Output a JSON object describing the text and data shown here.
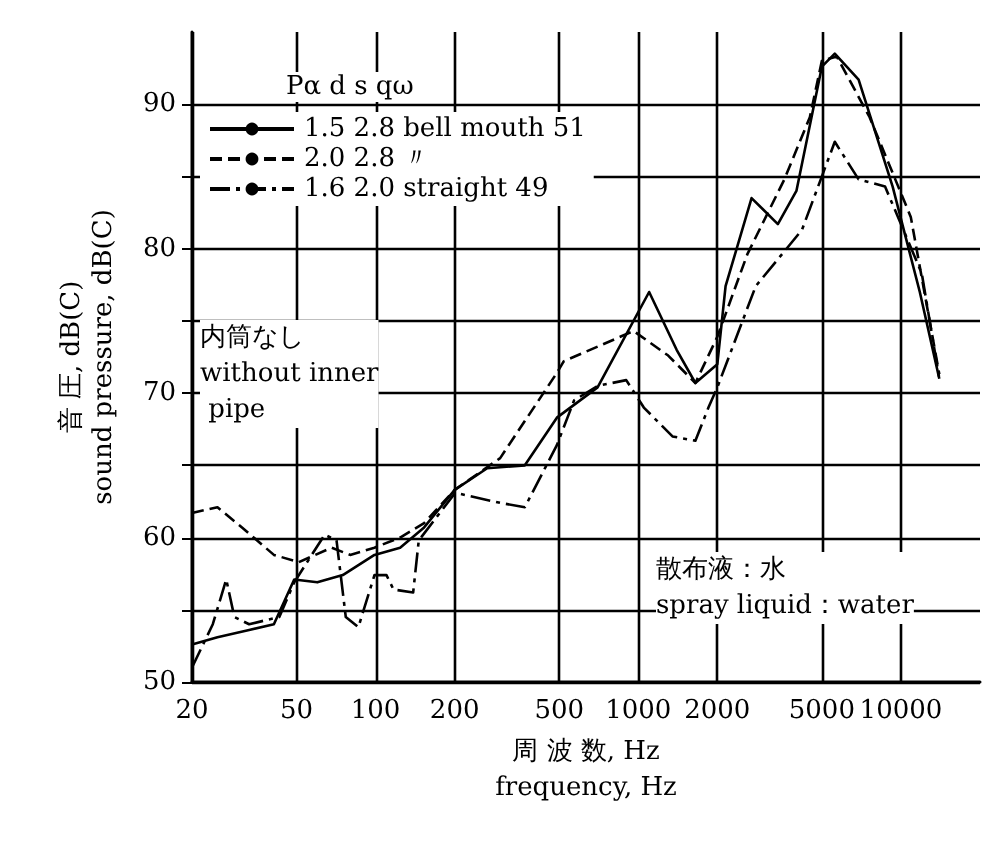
{
  "chart_data": {
    "type": "line",
    "xlabel": "周 波 数, Hz\nfrequency, Hz",
    "ylabel": "音 圧, dB(C)\nsound pressure, dB(C)",
    "legend_title": "Pα d s qω",
    "log": "x",
    "grid": true,
    "legend": "top left",
    "marker": "none",
    "xlim": [
      20,
      20000
    ],
    "xticks": [
      20,
      50,
      100,
      200,
      500,
      1000,
      2000,
      5000,
      10000
    ],
    "ylim": [
      50,
      95
    ],
    "yticks": [
      50,
      {
        "value": 55,
        "label": null
      },
      60,
      {
        "value": 65,
        "label": null
      },
      70,
      {
        "value": 75,
        "label": null
      },
      80,
      {
        "value": 85,
        "label": null
      },
      90
    ],
    "annotations": [
      "内筒なし\nwithout inner\n pipe",
      "散布液：水\nspray liquid：water"
    ],
    "series": [
      {
        "name": "1.5 2.8 bell mouth 51",
        "color": "#000000",
        "line_style": "solid",
        "x": [
          20,
          25,
          33,
          41,
          49,
          60,
          75,
          99,
          124,
          153,
          200,
          266,
          370,
          490,
          700,
          1100,
          1400,
          1650,
          2000,
          2150,
          2700,
          3400,
          4000,
          5000,
          5600,
          6900,
          9300,
          11800,
          14000
        ],
        "values": [
          52.6,
          53.1,
          53.6,
          54,
          57.1,
          56.9,
          57.4,
          58.8,
          59.3,
          60.7,
          63.3,
          64.8,
          65,
          68.3,
          70.4,
          77,
          73,
          70.7,
          72,
          77.4,
          83.5,
          81.7,
          84,
          92.6,
          93.5,
          91.7,
          84.3,
          77,
          71
        ]
      },
      {
        "name": "2.0 2.8 〃",
        "color": "#000000",
        "line_style": "dashed",
        "x": [
          20,
          25,
          31,
          41,
          51,
          68,
          80,
          99,
          124,
          153,
          200,
          298,
          490,
          520,
          960,
          1300,
          1650,
          2000,
          2600,
          3600,
          4500,
          5000,
          5700,
          7600,
          10900,
          14000
        ],
        "values": [
          61.7,
          62.1,
          60.7,
          58.8,
          58.3,
          59.3,
          58.8,
          59.3,
          60,
          61,
          63.3,
          65.5,
          71.4,
          72.2,
          74.3,
          72.6,
          70.7,
          73.9,
          79.6,
          84.8,
          89.1,
          93,
          93.3,
          89.1,
          82.2,
          71.3
        ]
      },
      {
        "name": "1.6 2.0 straight 49",
        "color": "#000000",
        "line_style": "dashdot",
        "x": [
          20,
          24,
          27,
          29,
          33,
          43,
          49,
          64,
          71,
          77,
          86,
          99,
          110,
          117,
          139,
          146,
          201,
          298,
          370,
          490,
          570,
          700,
          900,
          1050,
          1350,
          1650,
          1850,
          2000,
          2800,
          4200,
          5600,
          6900,
          8700,
          12000,
          14000
        ],
        "values": [
          51,
          54,
          57.1,
          54.5,
          54,
          54.5,
          56.9,
          60.2,
          59.8,
          54.5,
          53.8,
          57.4,
          57.4,
          56.4,
          56.2,
          59.8,
          63.1,
          62.4,
          62.1,
          66.4,
          69.5,
          70.5,
          70.9,
          69,
          67,
          66.7,
          69,
          70.4,
          77.4,
          81.3,
          87.4,
          84.8,
          84.3,
          78.3,
          71
        ]
      }
    ]
  }
}
